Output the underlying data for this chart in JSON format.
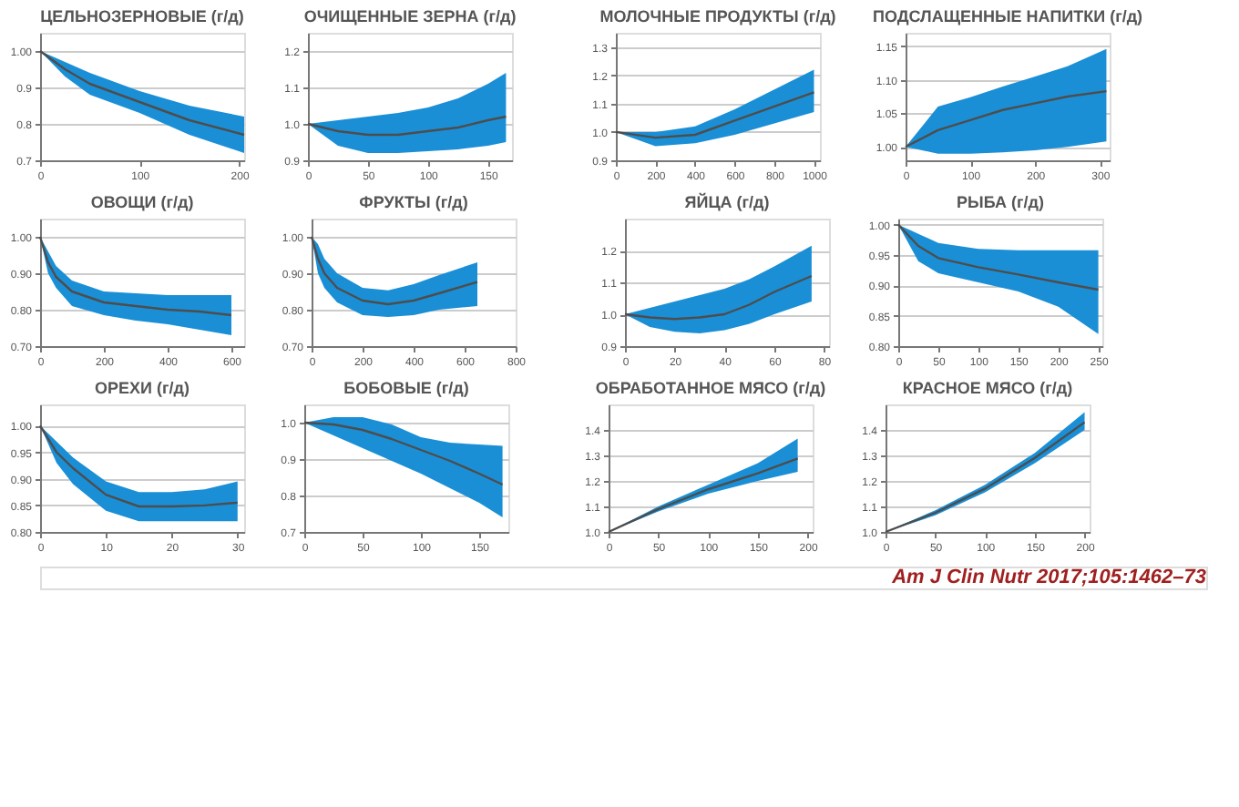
{
  "chart_data": [
    {
      "type": "line",
      "title": "ЦЕЛЬНОЗЕРНОВЫЕ (г/д)",
      "x": [
        0,
        25,
        50,
        100,
        150,
        205
      ],
      "xlim": [
        0,
        205
      ],
      "xticks": [
        0,
        100,
        200
      ],
      "ylim": [
        0.7,
        1.05
      ],
      "yticks": [
        0.7,
        0.8,
        0.9,
        {
          "value": 1,
          "label": "1.00"
        }
      ],
      "grid": "y",
      "series": [
        {
          "color": "#4d4d4d",
          "values": [
            1.0,
            0.95,
            0.91,
            0.86,
            0.81,
            0.77
          ],
          "lower": [
            1.0,
            0.93,
            0.88,
            0.83,
            0.77,
            0.72
          ],
          "upper": [
            1.0,
            0.97,
            0.94,
            0.89,
            0.85,
            0.82
          ]
        }
      ]
    },
    {
      "type": "line",
      "title": "ОЧИЩЕННЫЕ ЗЕРНА (г/д)",
      "x": [
        0,
        25,
        50,
        75,
        100,
        125,
        150,
        165
      ],
      "xlim": [
        0,
        170
      ],
      "xticks": [
        0,
        50,
        100,
        150
      ],
      "ylim": [
        0.9,
        1.25
      ],
      "yticks": [
        0.9,
        {
          "value": 1,
          "label": "1.0"
        },
        1.1,
        1.2
      ],
      "grid": "y",
      "series": [
        {
          "color": "#4d4d4d",
          "values": [
            1.0,
            0.98,
            0.97,
            0.97,
            0.98,
            0.99,
            1.01,
            1.02
          ],
          "lower": [
            1.0,
            0.94,
            0.92,
            0.92,
            0.925,
            0.93,
            0.94,
            0.95
          ],
          "upper": [
            1.0,
            1.01,
            1.02,
            1.03,
            1.045,
            1.07,
            1.11,
            1.14
          ]
        }
      ]
    },
    {
      "type": "line",
      "title": "МОЛОЧНЫЕ ПРОДУКТЫ (г/д)",
      "x": [
        0,
        200,
        400,
        600,
        800,
        1000
      ],
      "xlim": [
        0,
        1030
      ],
      "xticks": [
        0,
        200,
        400,
        600,
        800,
        1000
      ],
      "ylim": [
        0.9,
        1.35
      ],
      "yticks": [
        0.9,
        {
          "value": 1,
          "label": "1.0"
        },
        1.1,
        1.2,
        1.3
      ],
      "grid": "y",
      "series": [
        {
          "color": "#4d4d4d",
          "values": [
            1.0,
            0.98,
            0.99,
            1.04,
            1.09,
            1.14
          ],
          "lower": [
            1.0,
            0.95,
            0.96,
            0.99,
            1.03,
            1.07
          ],
          "upper": [
            1.0,
            1.0,
            1.02,
            1.08,
            1.15,
            1.22
          ]
        }
      ]
    },
    {
      "type": "line",
      "title": "ПОДСЛАЩЕННЫЕ НАПИТКИ (г/д)",
      "x": [
        0,
        50,
        100,
        150,
        200,
        250,
        310
      ],
      "xlim": [
        0,
        315
      ],
      "xticks": [
        0,
        100,
        200,
        300
      ],
      "ylim": [
        0.98,
        1.17
      ],
      "yticks": [
        {
          "value": 1,
          "label": "1.00"
        },
        1.05,
        {
          "value": 1.1,
          "label": "1.10"
        },
        1.15
      ],
      "grid": "y",
      "series": [
        {
          "color": "#4d4d4d",
          "values": [
            1.0,
            1.025,
            1.04,
            1.055,
            1.065,
            1.075,
            1.083
          ],
          "lower": [
            1.0,
            0.99,
            0.99,
            0.992,
            0.995,
            1.0,
            1.008
          ],
          "upper": [
            1.0,
            1.06,
            1.074,
            1.09,
            1.105,
            1.12,
            1.146
          ]
        }
      ]
    },
    {
      "type": "line",
      "title": "ОВОЩИ (г/д)",
      "x": [
        0,
        25,
        50,
        100,
        200,
        300,
        400,
        500,
        600
      ],
      "xlim": [
        0,
        640
      ],
      "xticks": [
        0,
        200,
        400,
        600
      ],
      "ylim": [
        0.7,
        1.05
      ],
      "yticks": [
        {
          "value": 0.7,
          "label": "0.70"
        },
        {
          "value": 0.8,
          "label": "0.80"
        },
        {
          "value": 0.9,
          "label": "0.90"
        },
        {
          "value": 1,
          "label": "1.00"
        }
      ],
      "grid": "y",
      "series": [
        {
          "color": "#4d4d4d",
          "values": [
            1.0,
            0.93,
            0.89,
            0.85,
            0.82,
            0.81,
            0.8,
            0.795,
            0.785
          ],
          "lower": [
            1.0,
            0.9,
            0.86,
            0.81,
            0.785,
            0.77,
            0.76,
            0.745,
            0.73
          ],
          "upper": [
            1.0,
            0.96,
            0.92,
            0.88,
            0.85,
            0.845,
            0.84,
            0.84,
            0.84
          ]
        }
      ]
    },
    {
      "type": "line",
      "title": "ФРУКТЫ (г/д)",
      "x": [
        0,
        25,
        50,
        100,
        200,
        300,
        400,
        500,
        650
      ],
      "xlim": [
        0,
        800
      ],
      "xticks": [
        0,
        200,
        400,
        600,
        800
      ],
      "ylim": [
        0.7,
        1.05
      ],
      "yticks": [
        {
          "value": 0.7,
          "label": "0.70"
        },
        {
          "value": 0.8,
          "label": "0.80"
        },
        {
          "value": 0.9,
          "label": "0.90"
        },
        {
          "value": 1,
          "label": "1.00"
        }
      ],
      "grid": "y",
      "series": [
        {
          "color": "#4d4d4d",
          "values": [
            1.0,
            0.94,
            0.9,
            0.86,
            0.825,
            0.815,
            0.825,
            0.845,
            0.876
          ],
          "lower": [
            1.0,
            0.9,
            0.86,
            0.82,
            0.785,
            0.78,
            0.785,
            0.8,
            0.81
          ],
          "upper": [
            1.0,
            0.98,
            0.94,
            0.9,
            0.86,
            0.853,
            0.87,
            0.895,
            0.93
          ]
        }
      ]
    },
    {
      "type": "line",
      "title": "ЯЙЦА (г/д)",
      "x": [
        0,
        10,
        20,
        30,
        40,
        50,
        60,
        75
      ],
      "xlim": [
        0,
        82
      ],
      "xticks": [
        0,
        20,
        40,
        60,
        80
      ],
      "ylim": [
        0.9,
        1.3
      ],
      "yticks": [
        0.9,
        {
          "value": 1,
          "label": "1.0"
        },
        1.1,
        1.2
      ],
      "grid": "y",
      "series": [
        {
          "color": "#4d4d4d",
          "values": [
            1.0,
            0.99,
            0.985,
            0.99,
            1.0,
            1.03,
            1.07,
            1.12
          ],
          "lower": [
            1.0,
            0.96,
            0.945,
            0.94,
            0.95,
            0.97,
            1.0,
            1.04
          ],
          "upper": [
            1.0,
            1.02,
            1.04,
            1.06,
            1.08,
            1.11,
            1.15,
            1.215
          ]
        }
      ]
    },
    {
      "type": "line",
      "title": "РЫБА (г/д)",
      "x": [
        0,
        25,
        50,
        100,
        150,
        200,
        250
      ],
      "xlim": [
        0,
        255
      ],
      "xticks": [
        0,
        50,
        100,
        150,
        200,
        250
      ],
      "ylim": [
        0.8,
        1.01
      ],
      "yticks": [
        {
          "value": 0.8,
          "label": "0.80"
        },
        0.85,
        {
          "value": 0.9,
          "label": "0.90"
        },
        0.95,
        {
          "value": 1,
          "label": "1.00"
        }
      ],
      "grid": "y",
      "series": [
        {
          "color": "#4d4d4d",
          "values": [
            1.0,
            0.965,
            0.945,
            0.93,
            0.918,
            0.905,
            0.893
          ],
          "lower": [
            1.0,
            0.94,
            0.92,
            0.905,
            0.89,
            0.865,
            0.82
          ],
          "upper": [
            1.0,
            0.985,
            0.97,
            0.96,
            0.958,
            0.958,
            0.958
          ]
        }
      ]
    },
    {
      "type": "line",
      "title": "ОРЕХИ (г/д)",
      "x": [
        0,
        2.5,
        5,
        10,
        15,
        20,
        25,
        30
      ],
      "xlim": [
        0,
        31
      ],
      "xticks": [
        0,
        10,
        20,
        30
      ],
      "ylim": [
        0.8,
        1.04
      ],
      "yticks": [
        {
          "value": 0.8,
          "label": "0.80"
        },
        0.85,
        {
          "value": 0.9,
          "label": "0.90"
        },
        0.95,
        {
          "value": 1,
          "label": "1.00"
        }
      ],
      "grid": "y",
      "series": [
        {
          "color": "#4d4d4d",
          "values": [
            1.0,
            0.95,
            0.92,
            0.87,
            0.848,
            0.848,
            0.85,
            0.855
          ],
          "lower": [
            1.0,
            0.93,
            0.89,
            0.84,
            0.82,
            0.82,
            0.82,
            0.82
          ],
          "upper": [
            1.0,
            0.97,
            0.94,
            0.895,
            0.875,
            0.875,
            0.88,
            0.895
          ]
        }
      ]
    },
    {
      "type": "line",
      "title": "БОБОВЫЕ (г/д)",
      "x": [
        0,
        25,
        50,
        75,
        100,
        125,
        150,
        170
      ],
      "xlim": [
        0,
        175
      ],
      "xticks": [
        0,
        50,
        100,
        150
      ],
      "ylim": [
        0.7,
        1.05
      ],
      "yticks": [
        0.7,
        0.8,
        0.9,
        {
          "value": 1,
          "label": "1.0"
        }
      ],
      "grid": "y",
      "series": [
        {
          "color": "#4d4d4d",
          "values": [
            1.0,
            0.995,
            0.98,
            0.955,
            0.925,
            0.895,
            0.86,
            0.83
          ],
          "lower": [
            1.0,
            0.965,
            0.93,
            0.895,
            0.86,
            0.82,
            0.78,
            0.74
          ],
          "upper": [
            1.0,
            1.015,
            1.015,
            0.995,
            0.96,
            0.945,
            0.94,
            0.936
          ]
        }
      ]
    },
    {
      "type": "line",
      "title": "ОБРАБОТАННОЕ МЯСО (г/д)",
      "x": [
        0,
        50,
        100,
        150,
        190
      ],
      "xlim": [
        0,
        205
      ],
      "xticks": [
        0,
        50,
        100,
        150,
        200
      ],
      "ylim": [
        1.0,
        1.5
      ],
      "yticks": [
        {
          "value": 1,
          "label": "1.0"
        },
        1.1,
        1.2,
        1.3,
        1.4
      ],
      "grid": "y",
      "series": [
        {
          "color": "#4d4d4d",
          "values": [
            1.0,
            1.09,
            1.167,
            1.23,
            1.288
          ],
          "lower": [
            1.0,
            1.08,
            1.15,
            1.2,
            1.236
          ],
          "upper": [
            1.0,
            1.1,
            1.185,
            1.27,
            1.366
          ]
        }
      ]
    },
    {
      "type": "line",
      "title": "КРАСНОЕ МЯСО (г/д)",
      "x": [
        0,
        50,
        100,
        150,
        200
      ],
      "xlim": [
        0,
        205
      ],
      "xticks": [
        0,
        50,
        100,
        150,
        200
      ],
      "ylim": [
        1.0,
        1.5
      ],
      "yticks": [
        {
          "value": 1,
          "label": "1.0"
        },
        1.1,
        1.2,
        1.3,
        1.4
      ],
      "grid": "y",
      "annotations": [
        "Am J Clin Nutr 2017;105:1462–73"
      ],
      "series": [
        {
          "color": "#4d4d4d",
          "values": [
            1.0,
            1.075,
            1.17,
            1.29,
            1.43
          ],
          "lower": [
            1.0,
            1.065,
            1.155,
            1.27,
            1.4
          ],
          "upper": [
            1.0,
            1.085,
            1.185,
            1.31,
            1.47
          ]
        }
      ]
    }
  ]
}
